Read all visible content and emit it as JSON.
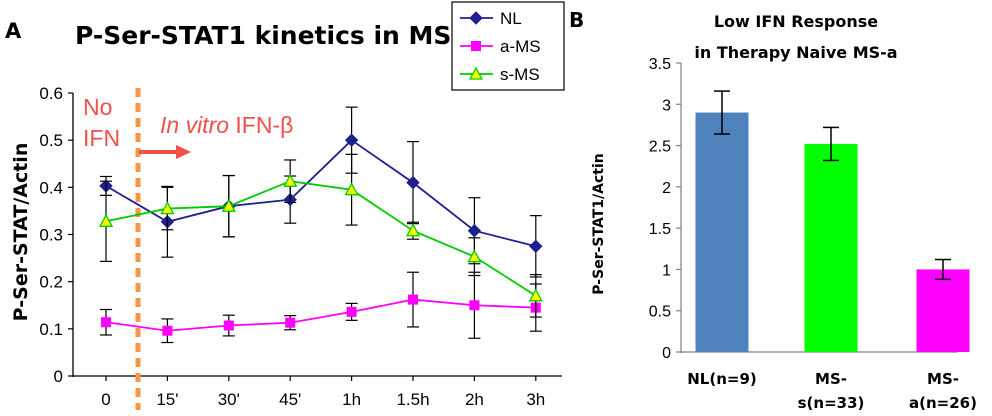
{
  "chart_data": [
    {
      "panel_label": "A",
      "type": "line",
      "title": "P-Ser-STAT1 kinetics in MS",
      "xlabel": "",
      "ylabel": "P-Ser-STAT/Actin",
      "ylim": [
        0,
        0.6
      ],
      "yticks": [
        "0",
        "0.1",
        "0.2",
        "0.3",
        "0.4",
        "0.5",
        "0.6"
      ],
      "categories": [
        "0",
        "15'",
        "30'",
        "45'",
        "1h",
        "1.5h",
        "2h",
        "3h"
      ],
      "legend_position": "top-right",
      "series": [
        {
          "name": "NL",
          "color": "#1f1f8f",
          "marker": "diamond",
          "values": [
            0.403,
            0.327,
            0.36,
            0.374,
            0.5,
            0.41,
            0.308,
            0.275
          ],
          "err": [
            0.02,
            0.075,
            0.065,
            0.05,
            0.07,
            0.087,
            0.07,
            0.065
          ]
        },
        {
          "name": "a-MS",
          "color": "#ff00ff",
          "marker": "square",
          "values": [
            0.114,
            0.096,
            0.107,
            0.113,
            0.136,
            0.162,
            0.15,
            0.145
          ],
          "err": [
            0.027,
            0.025,
            0.022,
            0.015,
            0.018,
            0.058,
            0.07,
            0.05
          ]
        },
        {
          "name": "s-MS",
          "color": "#00cc00",
          "marker": "triangle",
          "values": [
            0.328,
            0.355,
            0.36,
            0.413,
            0.395,
            0.308,
            0.253,
            0.17
          ],
          "err": [
            0.085,
            0.045,
            0.065,
            0.045,
            0.075,
            0.018,
            0.04,
            0.045
          ]
        }
      ],
      "annotations": {
        "no_ifn": [
          "No",
          "IFN"
        ],
        "in_vitro_italic": "In vitro",
        "in_vitro_rest": " IFN-β",
        "marker_color": "#f79646",
        "text_color": "#f0504a"
      }
    },
    {
      "panel_label": "B",
      "type": "bar",
      "title": [
        "Low IFN Response",
        "in Therapy Naive MS-a"
      ],
      "xlabel": "",
      "ylabel": "P-Ser-STAT1/Actin",
      "ylim": [
        0,
        3.5
      ],
      "yticks": [
        "0",
        "0.5",
        "1",
        "1.5",
        "2",
        "2.5",
        "3",
        "3.5"
      ],
      "categories": [
        [
          "NL(n=9)"
        ],
        [
          "MS-",
          "s(n=33)"
        ],
        [
          "MS-",
          "a(n=26)"
        ]
      ],
      "values": [
        2.9,
        2.52,
        1.0
      ],
      "err": [
        0.26,
        0.2,
        0.12
      ],
      "colors": [
        "#4f81bd",
        "#00ff00",
        "#ff00ff"
      ]
    }
  ]
}
